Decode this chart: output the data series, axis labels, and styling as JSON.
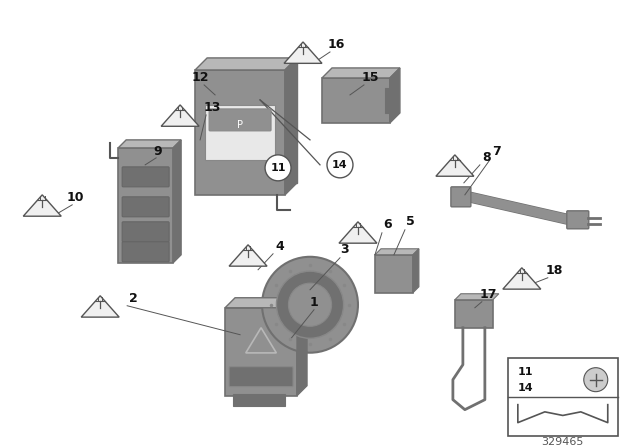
{
  "bg_color": "#ffffff",
  "part_number": "329465",
  "figsize": [
    6.4,
    4.48
  ],
  "dpi": 100,
  "gray_part": "#909090",
  "dark_edge": "#555555",
  "light_part": "#b0b0b0",
  "label_color": "#111111"
}
